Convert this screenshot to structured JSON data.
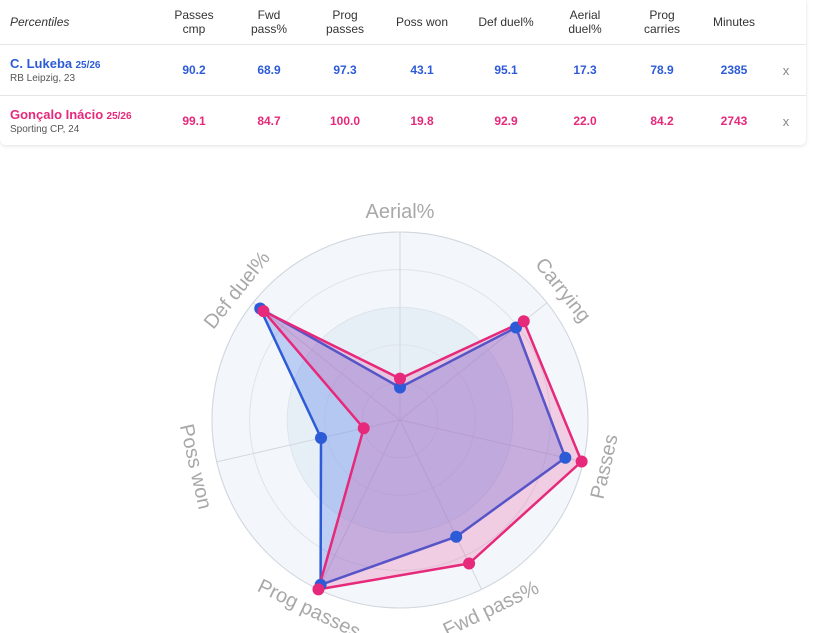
{
  "table": {
    "corner_label": "Percentiles",
    "columns": [
      [
        "Passes",
        "cmp"
      ],
      [
        "Fwd",
        "pass%"
      ],
      [
        "Prog",
        "passes"
      ],
      [
        "Poss won",
        ""
      ],
      [
        "Def duel%",
        ""
      ],
      [
        "Aerial",
        "duel%"
      ],
      [
        "Prog",
        "carries"
      ],
      [
        "Minutes",
        ""
      ]
    ],
    "rows": [
      {
        "name": "C. Lukeba",
        "season": "25/26",
        "club": "RB Leipzig, 23",
        "values": [
          "90.2",
          "68.9",
          "97.3",
          "43.1",
          "95.1",
          "17.3",
          "78.9",
          "2385"
        ],
        "remove_label": "x"
      },
      {
        "name": "Gonçalo Inácio",
        "season": "25/26",
        "club": "Sporting CP, 24",
        "values": [
          "99.1",
          "84.7",
          "100.0",
          "19.8",
          "92.9",
          "22.0",
          "84.2",
          "2743"
        ],
        "remove_label": "x"
      }
    ]
  },
  "colors": {
    "player1": "#2d5bd8",
    "player2": "#e6297a",
    "overlap_fill": "#b889d6",
    "ring_light": "#f3f7fb",
    "ring_dark": "#e6eef6"
  },
  "chart_data": {
    "type": "radar",
    "axes": [
      "Aerial%",
      "Carrying",
      "Passes",
      "Fwd pass%",
      "Prog passes",
      "Poss won",
      "Def duel%"
    ],
    "range": [
      0,
      100
    ],
    "series": [
      {
        "name": "C. Lukeba",
        "values": [
          17.3,
          78.9,
          90.2,
          68.9,
          97.3,
          43.1,
          95.1
        ]
      },
      {
        "name": "Gonçalo Inácio",
        "values": [
          22.0,
          84.2,
          99.1,
          84.7,
          100.0,
          19.8,
          92.9
        ]
      }
    ]
  }
}
